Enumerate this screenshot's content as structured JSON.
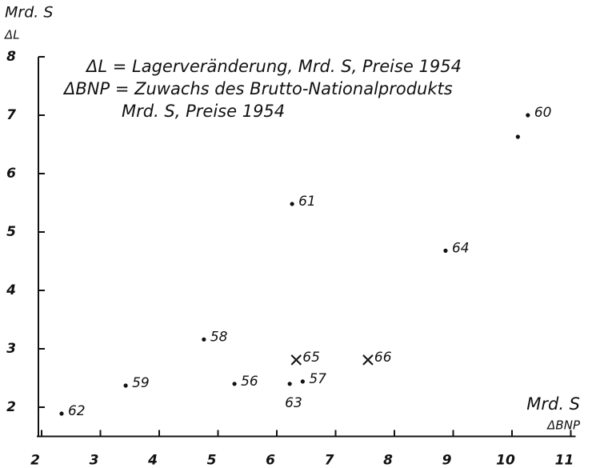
{
  "chart_data": {
    "type": "scatter",
    "y_unit": "Mrd. S",
    "y_label": "ΔL",
    "x_unit": "Mrd. S",
    "x_label": "ΔBNP",
    "annotations": [
      "ΔL = Lagerveränderung, Mrd. S, Preise 1954",
      "ΔBNP = Zuwachs des Brutto-Nationalprodukts",
      "Mrd. S, Preise 1954"
    ],
    "x": [
      10.27,
      10.1,
      6.26,
      8.87,
      4.76,
      6.33,
      7.55,
      3.43,
      5.28,
      6.22,
      6.44,
      2.34
    ],
    "values": [
      7.0,
      6.63,
      5.48,
      4.68,
      3.16,
      2.81,
      2.81,
      2.37,
      2.4,
      2.4,
      2.44,
      1.89
    ],
    "labels": [
      "60",
      null,
      "61",
      "64",
      "58",
      "65",
      "66",
      "59",
      "56",
      "63",
      "57",
      "62"
    ],
    "markers": [
      "dot",
      "dot",
      "dot",
      "dot",
      "dot",
      "cross",
      "cross",
      "dot",
      "dot",
      "dot",
      "dot",
      "dot"
    ],
    "color": "#111111",
    "xlim": [
      2,
      11
    ],
    "xticks": [
      2,
      3,
      4,
      5,
      6,
      7,
      8,
      9,
      10,
      11
    ],
    "ylim": [
      1.5,
      8
    ],
    "yticks": [
      2,
      3,
      4,
      5,
      6,
      7,
      8
    ]
  }
}
